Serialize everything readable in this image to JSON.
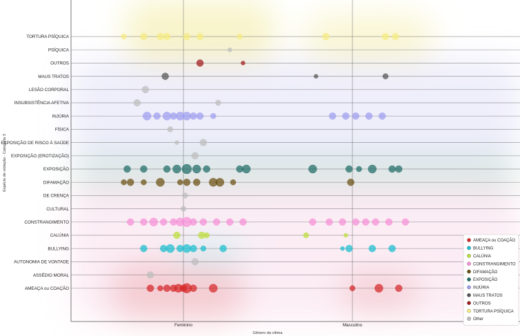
{
  "chart_data": {
    "type": "scatter",
    "title": "",
    "xlabel": "Gênero da vítima",
    "ylabel": "Espécie de violação - Categoria 3",
    "x_categories": [
      "Feminino",
      "Masculino"
    ],
    "y_categories": [
      "TORTURA PSÍQUICA",
      "PSÍQUICA",
      "OUTROS",
      "MAUS TRATOS",
      "LESÃO CORPORAL",
      "INSUBSISTÊNCIA AFETIVA",
      "INJÚRIA",
      "FÍSICA",
      "EXPOSIÇÃO DE RISCO À SAÚDE",
      "EXPOSIÇÃO (EROTIZAÇÃO)",
      "EXPOSIÇÃO",
      "DIFAMAÇÃO",
      "DE CRENÇA",
      "CULTURAL",
      "CONSTRANGIMENTO",
      "CALÚNIA",
      "BULLYING",
      "AUTONOMIA DE VONTADE",
      "ASSÉDIO MORAL",
      "AMEAÇA ou COAÇÃO"
    ],
    "grid": true,
    "legend_position": "bottom-right",
    "series": [
      {
        "name": "AMEAÇA ou COAÇÃO",
        "color": "#d62728",
        "points": [
          {
            "x": "Feminino",
            "y": "AMEAÇA ou COAÇÃO",
            "offset": -0.2,
            "size": 5
          },
          {
            "x": "Feminino",
            "y": "AMEAÇA ou COAÇÃO",
            "offset": -0.14,
            "size": 4
          },
          {
            "x": "Feminino",
            "y": "AMEAÇA ou COAÇÃO",
            "offset": -0.1,
            "size": 5
          },
          {
            "x": "Feminino",
            "y": "AMEAÇA ou COAÇÃO",
            "offset": -0.06,
            "size": 5
          },
          {
            "x": "Feminino",
            "y": "AMEAÇA ou COAÇÃO",
            "offset": -0.03,
            "size": 6
          },
          {
            "x": "Feminino",
            "y": "AMEAÇA ou COAÇÃO",
            "offset": 0.0,
            "size": 5
          },
          {
            "x": "Feminino",
            "y": "AMEAÇA ou COAÇÃO",
            "offset": 0.02,
            "size": 7
          },
          {
            "x": "Feminino",
            "y": "AMEAÇA ou COAÇÃO",
            "offset": 0.06,
            "size": 5
          },
          {
            "x": "Feminino",
            "y": "AMEAÇA ou COAÇÃO",
            "offset": 0.18,
            "size": 6
          },
          {
            "x": "Masculino",
            "y": "AMEAÇA ou COAÇÃO",
            "offset": 0.0,
            "size": 4
          },
          {
            "x": "Masculino",
            "y": "AMEAÇA ou COAÇÃO",
            "offset": 0.16,
            "size": 6
          },
          {
            "x": "Masculino",
            "y": "AMEAÇA ou COAÇÃO",
            "offset": 0.28,
            "size": 5
          }
        ]
      },
      {
        "name": "BULLYING",
        "color": "#17becf",
        "points": [
          {
            "x": "Feminino",
            "y": "BULLYING",
            "offset": -0.24,
            "size": 5
          },
          {
            "x": "Feminino",
            "y": "BULLYING",
            "offset": -0.12,
            "size": 5
          },
          {
            "x": "Feminino",
            "y": "BULLYING",
            "offset": -0.08,
            "size": 6
          },
          {
            "x": "Feminino",
            "y": "BULLYING",
            "offset": -0.02,
            "size": 5
          },
          {
            "x": "Feminino",
            "y": "BULLYING",
            "offset": 0.02,
            "size": 6
          },
          {
            "x": "Feminino",
            "y": "BULLYING",
            "offset": 0.06,
            "size": 5
          },
          {
            "x": "Feminino",
            "y": "BULLYING",
            "offset": 0.12,
            "size": 4
          },
          {
            "x": "Feminino",
            "y": "BULLYING",
            "offset": 0.24,
            "size": 5
          },
          {
            "x": "Masculino",
            "y": "BULLYING",
            "offset": -0.06,
            "size": 3
          },
          {
            "x": "Masculino",
            "y": "BULLYING",
            "offset": -0.02,
            "size": 5
          },
          {
            "x": "Masculino",
            "y": "BULLYING",
            "offset": 0.12,
            "size": 5
          },
          {
            "x": "Masculino",
            "y": "BULLYING",
            "offset": 0.24,
            "size": 5
          }
        ]
      },
      {
        "name": "CALÚNIA",
        "color": "#bcdf3a",
        "points": [
          {
            "x": "Feminino",
            "y": "CALÚNIA",
            "offset": -0.04,
            "size": 5
          },
          {
            "x": "Feminino",
            "y": "CALÚNIA",
            "offset": 0.11,
            "size": 5
          },
          {
            "x": "Feminino",
            "y": "CALÚNIA",
            "offset": 0.14,
            "size": 4
          },
          {
            "x": "Masculino",
            "y": "CALÚNIA",
            "offset": -0.28,
            "size": 4
          },
          {
            "x": "Masculino",
            "y": "CALÚNIA",
            "offset": -0.04,
            "size": 3
          }
        ]
      },
      {
        "name": "CONSTRANGIMENTO",
        "color": "#f78fd8",
        "points": [
          {
            "x": "Feminino",
            "y": "CONSTRANGIMENTO",
            "offset": -0.32,
            "size": 5
          },
          {
            "x": "Feminino",
            "y": "CONSTRANGIMENTO",
            "offset": -0.24,
            "size": 5
          },
          {
            "x": "Feminino",
            "y": "CONSTRANGIMENTO",
            "offset": -0.18,
            "size": 6
          },
          {
            "x": "Feminino",
            "y": "CONSTRANGIMENTO",
            "offset": -0.12,
            "size": 5
          },
          {
            "x": "Feminino",
            "y": "CONSTRANGIMENTO",
            "offset": -0.06,
            "size": 5
          },
          {
            "x": "Feminino",
            "y": "CONSTRANGIMENTO",
            "offset": -0.02,
            "size": 6
          },
          {
            "x": "Feminino",
            "y": "CONSTRANGIMENTO",
            "offset": 0.02,
            "size": 7
          },
          {
            "x": "Feminino",
            "y": "CONSTRANGIMENTO",
            "offset": 0.06,
            "size": 5
          },
          {
            "x": "Feminino",
            "y": "CONSTRANGIMENTO",
            "offset": 0.12,
            "size": 5
          },
          {
            "x": "Feminino",
            "y": "CONSTRANGIMENTO",
            "offset": 0.2,
            "size": 5
          },
          {
            "x": "Feminino",
            "y": "CONSTRANGIMENTO",
            "offset": 0.28,
            "size": 5
          },
          {
            "x": "Feminino",
            "y": "CONSTRANGIMENTO",
            "offset": 0.36,
            "size": 5
          },
          {
            "x": "Masculino",
            "y": "CONSTRANGIMENTO",
            "offset": -0.24,
            "size": 5
          },
          {
            "x": "Masculino",
            "y": "CONSTRANGIMENTO",
            "offset": -0.14,
            "size": 5
          },
          {
            "x": "Masculino",
            "y": "CONSTRANGIMENTO",
            "offset": -0.06,
            "size": 5
          },
          {
            "x": "Masculino",
            "y": "CONSTRANGIMENTO",
            "offset": 0.02,
            "size": 5
          },
          {
            "x": "Masculino",
            "y": "CONSTRANGIMENTO",
            "offset": 0.08,
            "size": 5
          },
          {
            "x": "Masculino",
            "y": "CONSTRANGIMENTO",
            "offset": 0.14,
            "size": 5
          },
          {
            "x": "Masculino",
            "y": "CONSTRANGIMENTO",
            "offset": 0.22,
            "size": 5
          },
          {
            "x": "Masculino",
            "y": "CONSTRANGIMENTO",
            "offset": 0.32,
            "size": 5
          }
        ]
      },
      {
        "name": "DIFAMAÇÃO",
        "color": "#6b5012",
        "points": [
          {
            "x": "Feminino",
            "y": "DIFAMAÇÃO",
            "offset": -0.36,
            "size": 4
          },
          {
            "x": "Feminino",
            "y": "DIFAMAÇÃO",
            "offset": -0.32,
            "size": 5
          },
          {
            "x": "Feminino",
            "y": "DIFAMAÇÃO",
            "offset": -0.24,
            "size": 4
          },
          {
            "x": "Feminino",
            "y": "DIFAMAÇÃO",
            "offset": -0.14,
            "size": 6
          },
          {
            "x": "Feminino",
            "y": "DIFAMAÇÃO",
            "offset": -0.02,
            "size": 4
          },
          {
            "x": "Feminino",
            "y": "DIFAMAÇÃO",
            "offset": 0.02,
            "size": 5
          },
          {
            "x": "Feminino",
            "y": "DIFAMAÇÃO",
            "offset": 0.08,
            "size": 5
          },
          {
            "x": "Feminino",
            "y": "DIFAMAÇÃO",
            "offset": 0.18,
            "size": 6
          },
          {
            "x": "Feminino",
            "y": "DIFAMAÇÃO",
            "offset": 0.22,
            "size": 6
          },
          {
            "x": "Feminino",
            "y": "DIFAMAÇÃO",
            "offset": 0.3,
            "size": 4
          },
          {
            "x": "Masculino",
            "y": "DIFAMAÇÃO",
            "offset": -0.01,
            "size": 5
          }
        ]
      },
      {
        "name": "EXPOSIÇÃO",
        "color": "#1f6b66",
        "points": [
          {
            "x": "Feminino",
            "y": "EXPOSIÇÃO",
            "offset": -0.34,
            "size": 5
          },
          {
            "x": "Feminino",
            "y": "EXPOSIÇÃO",
            "offset": -0.24,
            "size": 5
          },
          {
            "x": "Feminino",
            "y": "EXPOSIÇÃO",
            "offset": -0.1,
            "size": 5
          },
          {
            "x": "Feminino",
            "y": "EXPOSIÇÃO",
            "offset": -0.04,
            "size": 6
          },
          {
            "x": "Feminino",
            "y": "EXPOSIÇÃO",
            "offset": 0.02,
            "size": 7
          },
          {
            "x": "Feminino",
            "y": "EXPOSIÇÃO",
            "offset": 0.08,
            "size": 6
          },
          {
            "x": "Feminino",
            "y": "EXPOSIÇÃO",
            "offset": 0.14,
            "size": 5
          },
          {
            "x": "Feminino",
            "y": "EXPOSIÇÃO",
            "offset": 0.34,
            "size": 5
          },
          {
            "x": "Feminino",
            "y": "EXPOSIÇÃO",
            "offset": 0.38,
            "size": 6
          },
          {
            "x": "Masculino",
            "y": "EXPOSIÇÃO",
            "offset": -0.24,
            "size": 6
          },
          {
            "x": "Masculino",
            "y": "EXPOSIÇÃO",
            "offset": -0.02,
            "size": 5
          },
          {
            "x": "Masculino",
            "y": "EXPOSIÇÃO",
            "offset": 0.04,
            "size": 4
          },
          {
            "x": "Masculino",
            "y": "EXPOSIÇÃO",
            "offset": 0.12,
            "size": 6
          },
          {
            "x": "Masculino",
            "y": "EXPOSIÇÃO",
            "offset": 0.24,
            "size": 5
          },
          {
            "x": "Masculino",
            "y": "EXPOSIÇÃO",
            "offset": 0.28,
            "size": 5
          }
        ]
      },
      {
        "name": "INJÚRIA",
        "color": "#9e9ef0",
        "points": [
          {
            "x": "Feminino",
            "y": "INJÚRIA",
            "offset": -0.22,
            "size": 6
          },
          {
            "x": "Feminino",
            "y": "INJÚRIA",
            "offset": -0.16,
            "size": 5
          },
          {
            "x": "Feminino",
            "y": "INJÚRIA",
            "offset": -0.1,
            "size": 6
          },
          {
            "x": "Feminino",
            "y": "INJÚRIA",
            "offset": -0.06,
            "size": 5
          },
          {
            "x": "Feminino",
            "y": "INJÚRIA",
            "offset": -0.02,
            "size": 6
          },
          {
            "x": "Feminino",
            "y": "INJÚRIA",
            "offset": 0.02,
            "size": 6
          },
          {
            "x": "Feminino",
            "y": "INJÚRIA",
            "offset": 0.06,
            "size": 5
          },
          {
            "x": "Feminino",
            "y": "INJÚRIA",
            "offset": 0.1,
            "size": 5
          },
          {
            "x": "Feminino",
            "y": "INJÚRIA",
            "offset": 0.18,
            "size": 4
          },
          {
            "x": "Masculino",
            "y": "INJÚRIA",
            "offset": -0.12,
            "size": 5
          },
          {
            "x": "Masculino",
            "y": "INJÚRIA",
            "offset": -0.04,
            "size": 5
          },
          {
            "x": "Masculino",
            "y": "INJÚRIA",
            "offset": 0.02,
            "size": 5
          },
          {
            "x": "Masculino",
            "y": "INJÚRIA",
            "offset": 0.1,
            "size": 5
          },
          {
            "x": "Masculino",
            "y": "INJÚRIA",
            "offset": 0.18,
            "size": 5
          }
        ]
      },
      {
        "name": "MAUS TRATOS",
        "color": "#555555",
        "points": [
          {
            "x": "Feminino",
            "y": "MAUS TRATOS",
            "offset": -0.11,
            "size": 5
          },
          {
            "x": "Masculino",
            "y": "MAUS TRATOS",
            "offset": -0.22,
            "size": 3
          },
          {
            "x": "Masculino",
            "y": "MAUS TRATOS",
            "offset": 0.2,
            "size": 4
          }
        ]
      },
      {
        "name": "OUTROS",
        "color": "#a0191c",
        "points": [
          {
            "x": "Feminino",
            "y": "OUTROS",
            "offset": 0.1,
            "size": 5
          },
          {
            "x": "Feminino",
            "y": "OUTROS",
            "offset": 0.36,
            "size": 3
          }
        ]
      },
      {
        "name": "TORTURA PSÍQUICA",
        "color": "#f5ec80",
        "points": [
          {
            "x": "Feminino",
            "y": "TORTURA PSÍQUICA",
            "offset": -0.36,
            "size": 4
          },
          {
            "x": "Feminino",
            "y": "TORTURA PSÍQUICA",
            "offset": -0.24,
            "size": 5
          },
          {
            "x": "Feminino",
            "y": "TORTURA PSÍQUICA",
            "offset": -0.14,
            "size": 5
          },
          {
            "x": "Feminino",
            "y": "TORTURA PSÍQUICA",
            "offset": -0.1,
            "size": 5
          },
          {
            "x": "Feminino",
            "y": "TORTURA PSÍQUICA",
            "offset": 0.02,
            "size": 5
          },
          {
            "x": "Feminino",
            "y": "TORTURA PSÍQUICA",
            "offset": 0.1,
            "size": 5
          },
          {
            "x": "Feminino",
            "y": "TORTURA PSÍQUICA",
            "offset": 0.34,
            "size": 4
          },
          {
            "x": "Masculino",
            "y": "TORTURA PSÍQUICA",
            "offset": -0.16,
            "size": 5
          },
          {
            "x": "Masculino",
            "y": "TORTURA PSÍQUICA",
            "offset": 0.2,
            "size": 5
          },
          {
            "x": "Masculino",
            "y": "TORTURA PSÍQUICA",
            "offset": 0.26,
            "size": 5
          }
        ]
      },
      {
        "name": "Other",
        "color": "#bdbdbd",
        "points": [
          {
            "x": "Feminino",
            "y": "PSÍQUICA",
            "offset": 0.28,
            "size": 3
          },
          {
            "x": "Feminino",
            "y": "LESÃO CORPORAL",
            "offset": -0.23,
            "size": 5
          },
          {
            "x": "Feminino",
            "y": "INSUBSISTÊNCIA AFETIVA",
            "offset": -0.28,
            "size": 5
          },
          {
            "x": "Feminino",
            "y": "INSUBSISTÊNCIA AFETIVA",
            "offset": 0.21,
            "size": 4
          },
          {
            "x": "Feminino",
            "y": "FÍSICA",
            "offset": -0.08,
            "size": 4
          },
          {
            "x": "Feminino",
            "y": "EXPOSIÇÃO DE RISCO À SAÚDE",
            "offset": -0.04,
            "size": 3
          },
          {
            "x": "Feminino",
            "y": "EXPOSIÇÃO DE RISCO À SAÚDE",
            "offset": 0.12,
            "size": 5
          },
          {
            "x": "Feminino",
            "y": "EXPOSIÇÃO (EROTIZAÇÃO)",
            "offset": 0.07,
            "size": 5
          },
          {
            "x": "Feminino",
            "y": "DE CRENÇA",
            "offset": 0.01,
            "size": 4
          },
          {
            "x": "Feminino",
            "y": "CULTURAL",
            "offset": 0.0,
            "size": 4
          },
          {
            "x": "Feminino",
            "y": "AUTONOMIA DE VONTADE",
            "offset": 0.07,
            "size": 5
          },
          {
            "x": "Feminino",
            "y": "ASSÉDIO MORAL",
            "offset": -0.2,
            "size": 5
          }
        ]
      }
    ]
  }
}
